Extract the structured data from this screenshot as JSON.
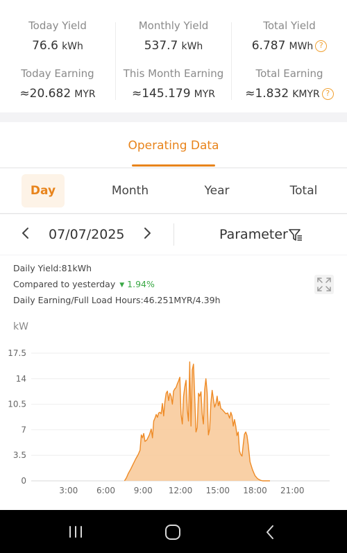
{
  "summary": {
    "today_yield": {
      "label": "Today Yield",
      "value": "76.6",
      "unit": "kWh"
    },
    "monthly_yield": {
      "label": "Monthly Yield",
      "value": "537.7",
      "unit": "kWh"
    },
    "total_yield": {
      "label": "Total Yield",
      "value": "6.787",
      "unit": "MWh"
    },
    "today_earning": {
      "label": "Today Earning",
      "value": "≈20.682",
      "unit": "MYR"
    },
    "month_earning": {
      "label": "This Month Earning",
      "value": "≈145.179",
      "unit": "MYR"
    },
    "total_earning": {
      "label": "Total Earning",
      "value": "≈1.832",
      "unit": "KMYR"
    },
    "help_glyph": "?"
  },
  "section_tab": "Operating Data",
  "period_tabs": [
    "Day",
    "Month",
    "Year",
    "Total"
  ],
  "active_period": "Day",
  "date": "07/07/2025",
  "parameter_label": "Parameter",
  "info": {
    "daily_yield": "Daily Yield:81kWh",
    "compared_label": "Compared to yesterday",
    "compared_change": "1.94%",
    "earning_hours": "Daily Earning/Full Load Hours:46.251MYR/4.39h"
  },
  "colors": {
    "accent": "#e8841c",
    "area_fill": "#f8c897",
    "area_line": "#ee8a25",
    "positive": "#3aa845"
  },
  "icons": {
    "prev": "chevron-left-icon",
    "next": "chevron-right-icon",
    "filter": "filter-icon",
    "expand": "expand-icon"
  },
  "chart_data": {
    "type": "area",
    "ylabel": "kW",
    "yticks": [
      0,
      3.5,
      7,
      10.5,
      14,
      17.5
    ],
    "ylim": [
      0,
      17.5
    ],
    "xlim": [
      0,
      24
    ],
    "xticks": [
      "3:00",
      "6:00",
      "9:00",
      "12:00",
      "15:00",
      "18:00",
      "21:00"
    ],
    "xtick_hours": [
      3,
      6,
      9,
      12,
      15,
      18,
      21
    ],
    "grid": true,
    "series": [
      {
        "x": [
          7.5,
          7.65,
          7.8,
          8.0,
          8.2,
          8.4,
          8.6,
          8.75,
          8.85,
          8.95,
          9.05,
          9.15,
          9.3,
          9.5,
          9.65,
          9.75,
          9.85,
          9.95,
          10.05,
          10.15,
          10.25,
          10.35,
          10.45,
          10.55,
          10.65,
          10.75,
          10.85,
          10.95,
          11.05,
          11.15,
          11.25,
          11.35,
          11.45,
          11.55,
          11.65,
          11.75,
          11.85,
          11.95,
          12.05,
          12.15,
          12.25,
          12.35,
          12.45,
          12.55,
          12.65,
          12.75,
          12.85,
          12.95,
          13.05,
          13.15,
          13.25,
          13.35,
          13.45,
          13.55,
          13.65,
          13.75,
          13.85,
          13.95,
          14.05,
          14.15,
          14.25,
          14.35,
          14.45,
          14.55,
          14.65,
          14.75,
          14.85,
          14.95,
          15.05,
          15.15,
          15.25,
          15.35,
          15.5,
          15.65,
          15.8,
          15.95,
          16.05,
          16.15,
          16.25,
          16.35,
          16.45,
          16.55,
          16.65,
          16.75,
          16.85,
          16.95,
          17.05,
          17.15,
          17.25,
          17.35,
          17.45,
          17.6,
          17.8,
          18.0,
          18.2,
          18.4,
          18.6,
          18.8,
          19.0,
          19.2
        ],
        "y": [
          0,
          0.4,
          1.0,
          1.6,
          2.3,
          3.0,
          3.6,
          4.2,
          6.3,
          5.9,
          6.5,
          5.4,
          5.6,
          6.3,
          7.1,
          5.9,
          8.2,
          8.6,
          9.1,
          8.7,
          9.3,
          9.4,
          9.2,
          10.6,
          8.9,
          10.8,
          12.0,
          12.3,
          11.0,
          12.0,
          11.6,
          10.5,
          12.3,
          12.6,
          12.8,
          13.3,
          13.7,
          14.2,
          9.1,
          7.8,
          11.6,
          12.9,
          13.8,
          9.7,
          8.2,
          16.3,
          7.5,
          15.2,
          16.0,
          11.5,
          6.7,
          7.3,
          12.0,
          11.6,
          12.2,
          9.1,
          7.8,
          12.5,
          14.0,
          12.1,
          6.3,
          7.1,
          10.7,
          12.4,
          11.2,
          10.1,
          10.6,
          11.6,
          10.3,
          10.9,
          9.9,
          9.8,
          9.5,
          9.2,
          9.3,
          8.6,
          9.4,
          8.9,
          7.5,
          8.4,
          7.5,
          6.2,
          6.7,
          4.1,
          3.6,
          3.4,
          5.0,
          6.4,
          6.7,
          6.2,
          5.0,
          2.6,
          1.5,
          0.7,
          0.3,
          0.1,
          0,
          0,
          0,
          0
        ]
      }
    ]
  }
}
